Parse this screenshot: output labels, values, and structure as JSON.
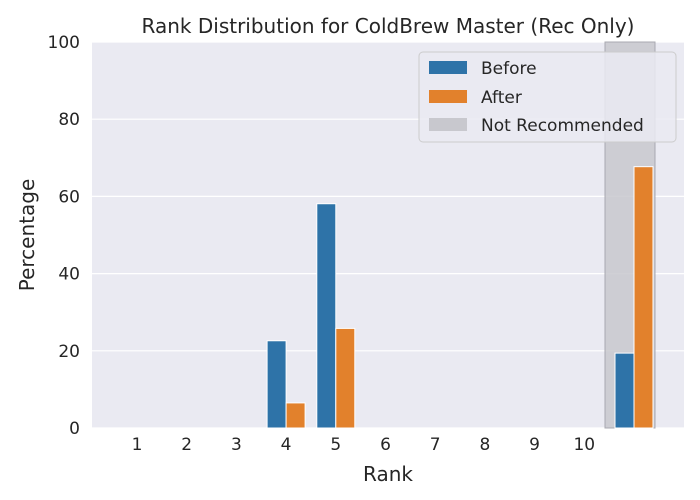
{
  "chart_data": {
    "type": "bar",
    "title": "Rank Distribution for ColdBrew Master (Rec Only)",
    "xlabel": "Rank",
    "ylabel": "Percentage",
    "categories": [
      "1",
      "2",
      "3",
      "4",
      "5",
      "6",
      "7",
      "8",
      "9",
      "10",
      ""
    ],
    "series": [
      {
        "name": "Before",
        "color": "#2e73a8",
        "values": [
          0,
          0,
          0,
          22.6,
          58.1,
          0,
          0,
          0,
          0,
          0,
          19.4
        ]
      },
      {
        "name": "After",
        "color": "#e2812c",
        "values": [
          0,
          0,
          0,
          6.5,
          25.8,
          0,
          0,
          0,
          0,
          0,
          67.7
        ]
      }
    ],
    "highlight": {
      "label": "Not Recommended",
      "category_index": 10,
      "color": "#c8c8ce"
    },
    "ylim": [
      0,
      100
    ],
    "yticks": [
      0,
      20,
      40,
      60,
      80,
      100
    ],
    "grid": true,
    "legend": "top-right"
  }
}
